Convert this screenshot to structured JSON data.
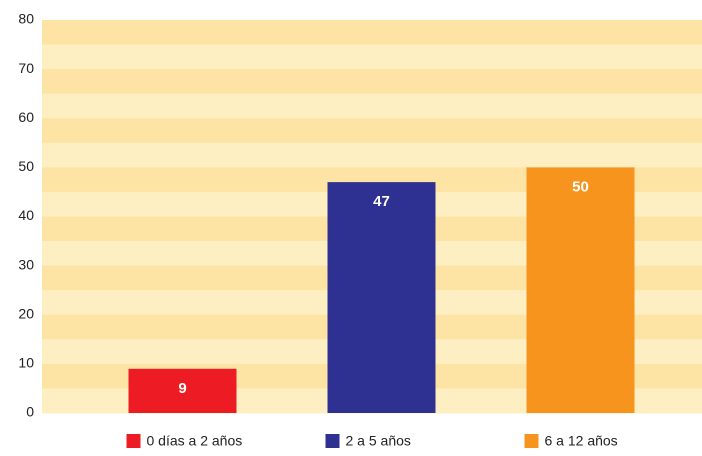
{
  "chart_data": {
    "type": "bar",
    "categories": [
      "0 días a 2 años",
      "2 a 5 años",
      "6 a 12 años"
    ],
    "values": [
      9,
      47,
      50
    ],
    "colors": [
      "#ed1c24",
      "#2e3192",
      "#f7941d"
    ],
    "ylim": [
      0,
      80
    ],
    "yticks": [
      0,
      10,
      20,
      30,
      40,
      50,
      60,
      70,
      80
    ],
    "legend": "bottom"
  }
}
